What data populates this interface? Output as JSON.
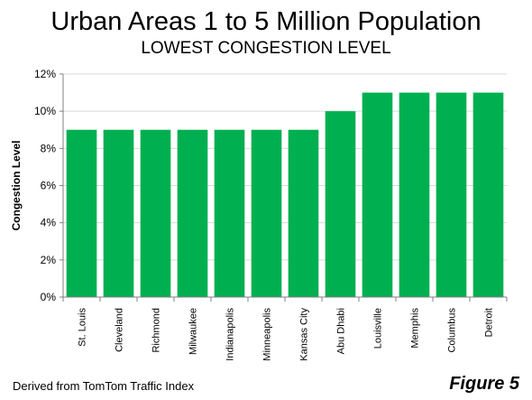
{
  "title": "Urban Areas 1 to 5 Million Population",
  "subtitle": "LOWEST CONGESTION LEVEL",
  "footer": {
    "source": "Derived from TomTom Traffic Index",
    "figure_label": "Figure 5"
  },
  "colors": {
    "bar": "#00b050",
    "grid": "#d9d9d9",
    "axis": "#808080"
  },
  "chart_data": {
    "type": "bar",
    "categories": [
      "St. Louis",
      "Cleveland",
      "Richmond",
      "Milwaukee",
      "Indianapolis",
      "Minneapolis",
      "Kansas City",
      "Abu Dhabi",
      "Louisville",
      "Memphis",
      "Columbus",
      "Detroit"
    ],
    "values": [
      9,
      9,
      9,
      9,
      9,
      9,
      9,
      10,
      11,
      11,
      11,
      11
    ],
    "ylabel": "Congestion Level",
    "xlabel": "",
    "ylim": [
      0,
      12
    ],
    "yticks": [
      0,
      2,
      4,
      6,
      8,
      10,
      12
    ],
    "ytick_labels": [
      "0%",
      "2%",
      "4%",
      "6%",
      "8%",
      "10%",
      "12%"
    ],
    "grid": true,
    "legend": false
  }
}
